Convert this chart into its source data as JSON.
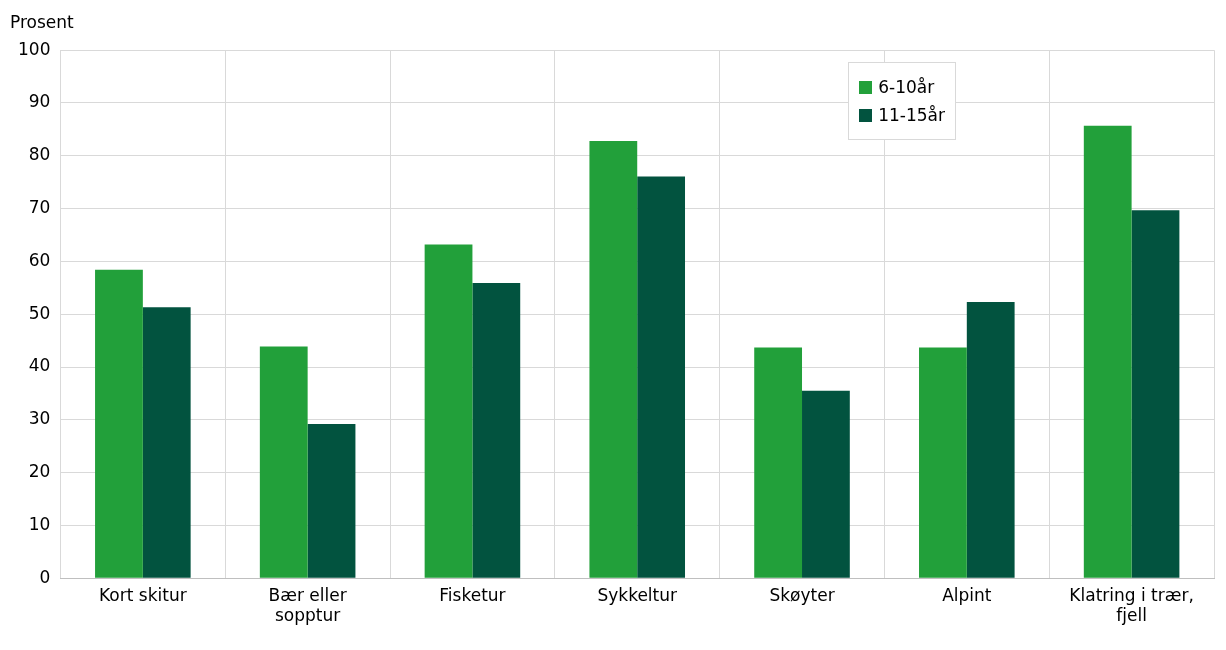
{
  "chart_data": {
    "type": "bar",
    "ylabel": "Prosent",
    "categories": [
      "Kort skitur",
      "Bær eller sopptur",
      "Fisketur",
      "Sykkeltur",
      "Skøyter",
      "Alpint",
      "Klatring i trær, fjell"
    ],
    "series": [
      {
        "name": "6-10år",
        "color": "#22a03a",
        "values": [
          58.4,
          43.9,
          63.2,
          82.8,
          43.7,
          43.7,
          85.7
        ]
      },
      {
        "name": "11-15år",
        "color": "#02533f",
        "values": [
          51.3,
          29.2,
          55.9,
          76.1,
          35.5,
          52.3,
          69.7
        ]
      }
    ],
    "ylim": [
      0,
      100
    ],
    "yticks": [
      0,
      10,
      20,
      30,
      40,
      50,
      60,
      70,
      80,
      90,
      100
    ],
    "grid": true,
    "legend": "top right"
  }
}
